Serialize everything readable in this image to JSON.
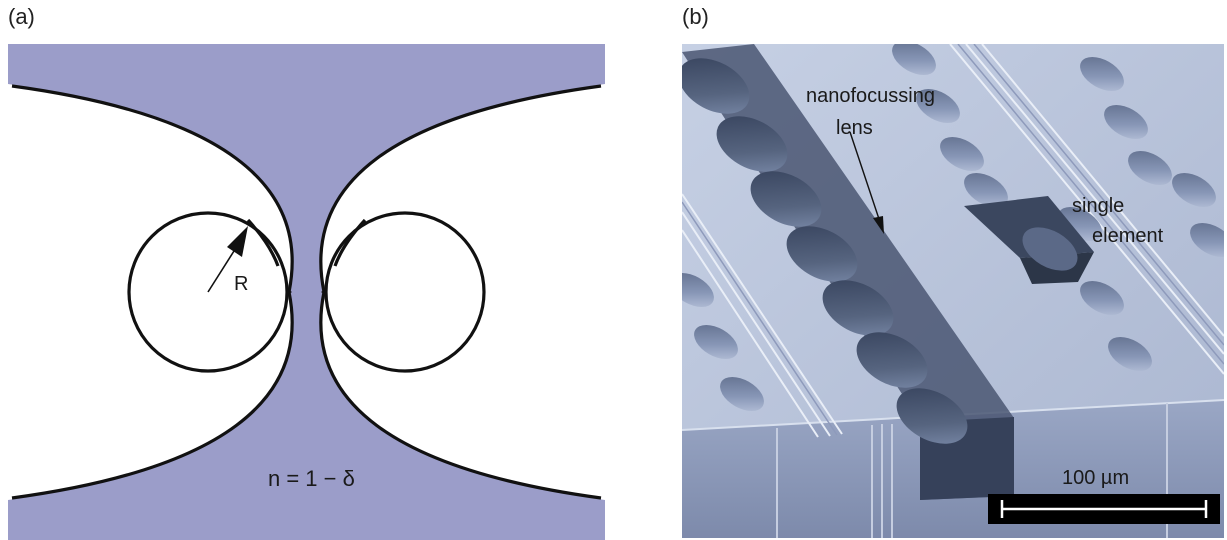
{
  "panels": {
    "a": {
      "label": "(a)",
      "radius_label": "R",
      "index_label": "n = 1 − δ",
      "colors": {
        "material": "#9b9dc9",
        "outline": "#111111",
        "background": "#ffffff"
      }
    },
    "b": {
      "label": "(b)",
      "lens_label_line1": "nanofocussing",
      "lens_label_line2": "lens",
      "element_label_line1": "single",
      "element_label_line2": "element",
      "scale_label": "100 µm",
      "colors": {
        "surface": "#b9c4dc",
        "channel": "#3d4a60",
        "side": "#8f9cbd",
        "hole": "#4e5b79"
      }
    }
  }
}
